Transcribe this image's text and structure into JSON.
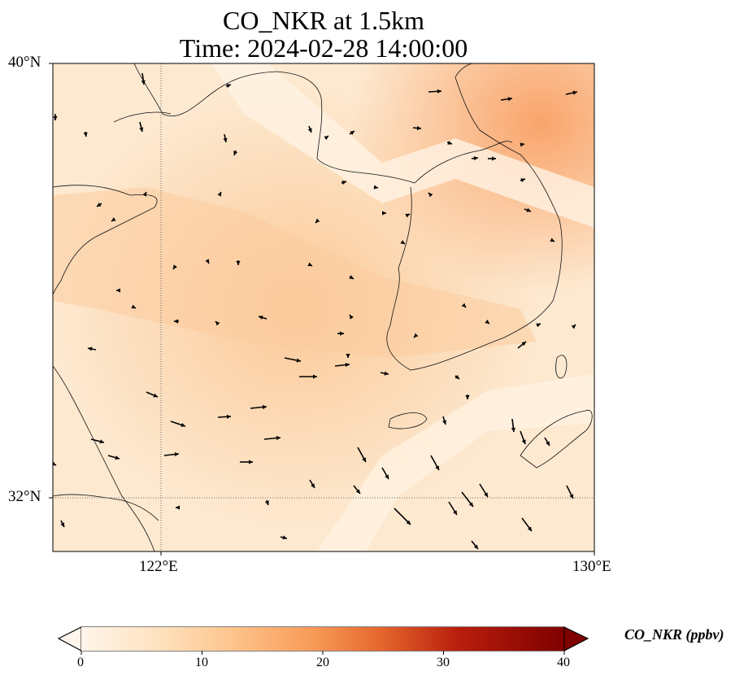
{
  "title": {
    "line1": "CO_NKR at 1.5km",
    "line2": "Time: 2024-02-28 14:00:00"
  },
  "map": {
    "extent": {
      "lon": [
        118.8,
        130.0
      ],
      "lat": [
        31.0,
        40.0
      ]
    },
    "lat_ticks": [
      {
        "value": 40,
        "label": "40°N"
      },
      {
        "value": 32,
        "label": "32°N"
      }
    ],
    "lon_ticks": [
      {
        "value": 122,
        "label": "122°E"
      },
      {
        "value": 130,
        "label": "130°E"
      }
    ],
    "gridlines": "dotted",
    "field_base_color": "#fde9d0",
    "wind_arrows": "black quiver vectors"
  },
  "colorbar": {
    "label": "CO_NKR (ppbv)",
    "min": 0,
    "max": 40,
    "ticks": [
      "0",
      "10",
      "20",
      "30",
      "40"
    ],
    "colormap": "Oranges-to-dark-red",
    "colors": [
      "#fff5eb",
      "#fdd9ae",
      "#fdb06d",
      "#f57a33",
      "#d9480f",
      "#a70707",
      "#7f0000"
    ],
    "extend": "both"
  }
}
